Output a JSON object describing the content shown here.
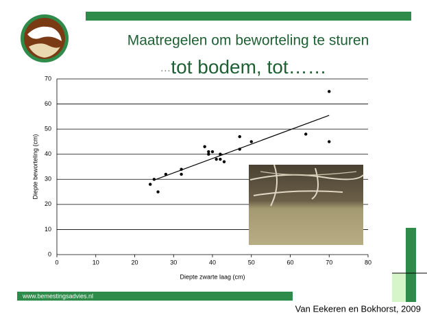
{
  "header": {
    "title": "Maatregelen om beworteling te sturen",
    "subtitle_prefix": "…",
    "subtitle": "tot bodem, tot……"
  },
  "chart_data": {
    "type": "scatter",
    "x_label": "Diepte zwarte laag (cm)",
    "y_label": "Diepte beworteling (cm)",
    "x": [
      24,
      25,
      26,
      28,
      32,
      32,
      38,
      39,
      39,
      40,
      41,
      42,
      42,
      43,
      47,
      47,
      50,
      64,
      70,
      70
    ],
    "values": [
      28,
      30,
      25,
      32,
      34,
      32,
      43,
      41,
      40,
      41,
      38,
      40,
      38,
      37,
      47,
      42,
      45,
      48,
      65,
      45
    ],
    "color": "#000000",
    "trendline": {
      "x": [
        25,
        70
      ],
      "values": [
        29.7,
        55.5
      ]
    },
    "xlim": [
      0,
      80
    ],
    "xticks": [
      0,
      10,
      20,
      30,
      40,
      50,
      60,
      70,
      80
    ],
    "ylim": [
      0,
      70
    ],
    "yticks": [
      0,
      10,
      20,
      30,
      40,
      50,
      60,
      70
    ],
    "grid": true
  },
  "footer": {
    "website": "www.bemestingsadvies.nl",
    "citation": "Van Eekeren en Bokhorst, 2009"
  }
}
